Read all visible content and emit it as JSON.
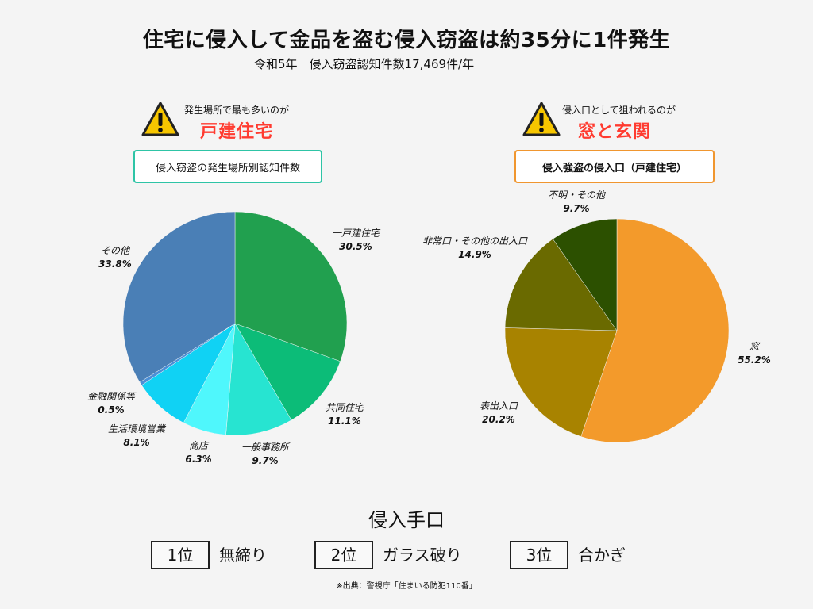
{
  "header": {
    "title": "住宅に侵入して金品を盗む侵入窃盗は約35分に1件発生",
    "subtitle": "令和5年　侵入窃盗認知件数17,469件/年"
  },
  "left_panel": {
    "note_small": "発生場所で最も多いのが",
    "note_big": "戸建住宅",
    "chart_label": "侵入窃盗の発生場所別認知件数",
    "border_color": "#2ec4a6"
  },
  "right_panel": {
    "note_small": "侵入口として狙われるのが",
    "note_big": "窓と玄関",
    "chart_label": "侵入強盗の侵入口（戸建住宅）",
    "border_color": "#f0962f"
  },
  "chart_data": [
    {
      "type": "pie",
      "title": "侵入窃盗の発生場所別認知件数",
      "slices": [
        {
          "label": "一戸建住宅",
          "value": 30.5,
          "display": "30.5%",
          "color": "#21a04f"
        },
        {
          "label": "共同住宅",
          "value": 11.1,
          "display": "11.1%",
          "color": "#0cbc78"
        },
        {
          "label": "一般事務所",
          "value": 9.7,
          "display": "9.7%",
          "color": "#27e4d1"
        },
        {
          "label": "商店",
          "value": 6.3,
          "display": "6.3%",
          "color": "#4ff7fc"
        },
        {
          "label": "生活環境営業",
          "value": 8.1,
          "display": "8.1%",
          "color": "#10d2f4"
        },
        {
          "label": "金融関係等",
          "value": 0.5,
          "display": "0.5%",
          "color": "#4b8fd6"
        },
        {
          "label": "その他",
          "value": 33.8,
          "display": "33.8%",
          "color": "#4a7fb6"
        }
      ]
    },
    {
      "type": "pie",
      "title": "侵入強盗の侵入口（戸建住宅）",
      "slices": [
        {
          "label": "窓",
          "value": 55.2,
          "display": "55.2%",
          "color": "#f39a2b"
        },
        {
          "label": "表出入口",
          "value": 20.2,
          "display": "20.2%",
          "color": "#a88300"
        },
        {
          "label": "非常口・その他の出入口",
          "value": 14.9,
          "display": "14.9%",
          "color": "#6a6a00"
        },
        {
          "label": "不明・その他",
          "value": 9.7,
          "display": "9.7%",
          "color": "#2c5000"
        }
      ]
    }
  ],
  "methods": {
    "title": "侵入手口",
    "ranks": [
      {
        "rank": "1位",
        "name": "無締り"
      },
      {
        "rank": "2位",
        "name": "ガラス破り"
      },
      {
        "rank": "3位",
        "name": "合かぎ"
      }
    ]
  },
  "source": "※出典：警視庁「住まいる防犯110番」"
}
